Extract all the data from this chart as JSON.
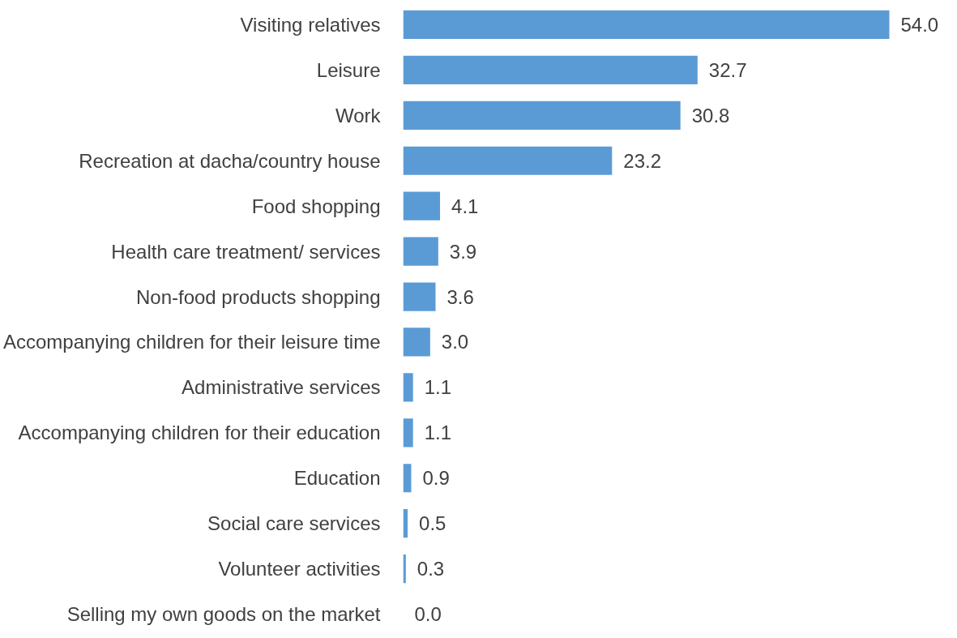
{
  "chart_data": {
    "type": "bar",
    "orientation": "horizontal",
    "categories": [
      "Visiting relatives",
      "Leisure",
      "Work",
      "Recreation at dacha/country house",
      "Food shopping",
      "Health care treatment/ services",
      "Non-food products shopping",
      "Accompanying children for their leisure time",
      "Administrative services",
      "Accompanying children for their education",
      "Education",
      "Social care services",
      "Volunteer activities",
      "Selling my own goods on the market"
    ],
    "values": [
      54.0,
      32.7,
      30.8,
      23.2,
      4.1,
      3.9,
      3.6,
      3.0,
      1.1,
      1.1,
      0.9,
      0.5,
      0.3,
      0.0
    ],
    "value_labels": [
      "54.0",
      "32.7",
      "30.8",
      "23.2",
      "4.1",
      "3.9",
      "3.6",
      "3.0",
      "1.1",
      "1.1",
      "0.9",
      "0.5",
      "0.3",
      "0.0"
    ],
    "color": "#5b9bd5"
  }
}
